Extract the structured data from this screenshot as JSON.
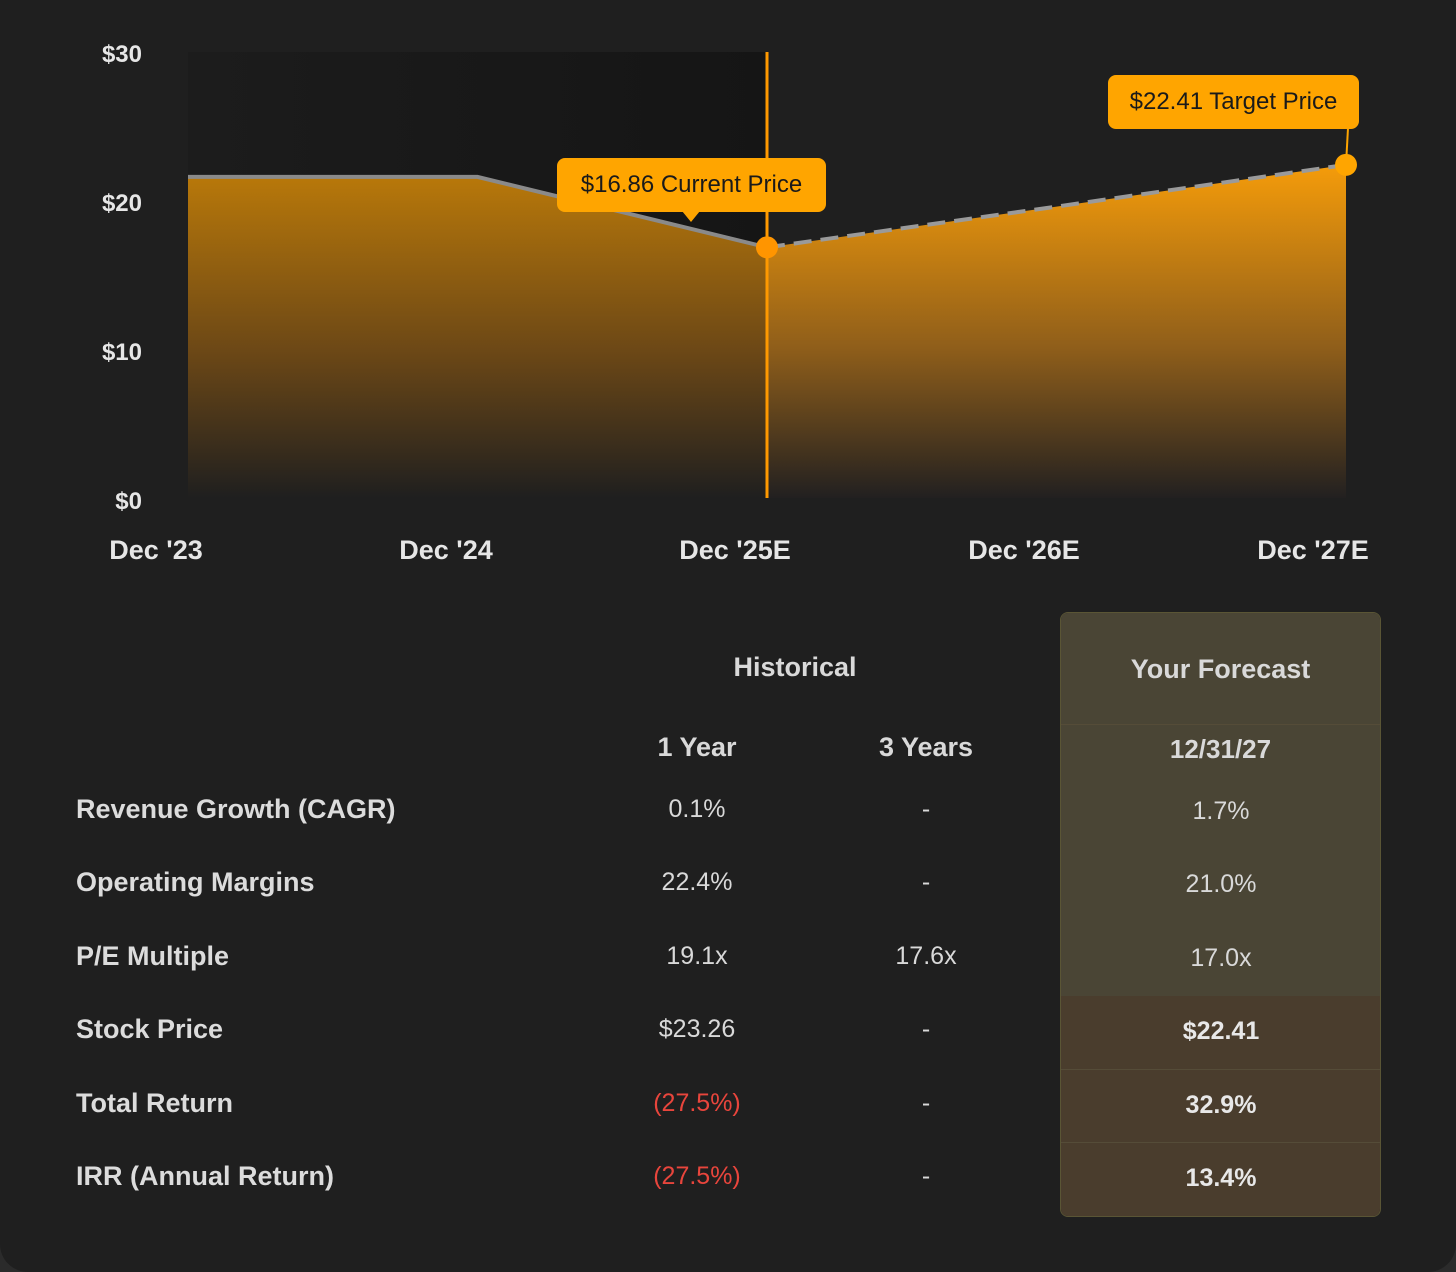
{
  "chart_data": {
    "type": "area",
    "x_tick_labels": [
      "Dec '23",
      "Dec '24",
      "Dec '25E",
      "Dec '26E",
      "Dec '27E"
    ],
    "y_tick_labels": [
      "$30",
      "$20",
      "$10",
      "$0"
    ],
    "ylim": [
      0,
      30
    ],
    "historical_points": [
      {
        "x": "Dec '23",
        "y": 21.6
      },
      {
        "x": "Dec '24",
        "y": 21.6
      },
      {
        "x": "Dec '25E",
        "y": 16.86
      }
    ],
    "forecast_points": [
      {
        "x": "Dec '25E",
        "y": 16.86
      },
      {
        "x": "Dec '26E",
        "y": 19.6
      },
      {
        "x": "Dec '27E",
        "y": 22.41
      }
    ],
    "current_price_label": "$16.86 Current Price",
    "target_price_label": "$22.41 Target Price",
    "current_price": 16.86,
    "target_price": 22.41,
    "colors": {
      "accent": "#ffa500",
      "line": "#8a8a8a",
      "background": "#1f1f1f"
    }
  },
  "table": {
    "historical_header": "Historical",
    "forecast_header": "Your Forecast",
    "col_1year": "1 Year",
    "col_3years": "3 Years",
    "col_forecast_date": "12/31/27",
    "rows": [
      {
        "label": "Revenue Growth (CAGR)",
        "one_year": "0.1%",
        "three_years": "-",
        "forecast": "1.7%"
      },
      {
        "label": "Operating Margins",
        "one_year": "22.4%",
        "three_years": "-",
        "forecast": "21.0%"
      },
      {
        "label": "P/E Multiple",
        "one_year": "19.1x",
        "three_years": "17.6x",
        "forecast": "17.0x"
      },
      {
        "label": "Stock Price",
        "one_year": "$23.26",
        "three_years": "-",
        "forecast": "$22.41"
      },
      {
        "label": "Total Return",
        "one_year": "(27.5%)",
        "three_years": "-",
        "forecast": "32.9%"
      },
      {
        "label": "IRR (Annual Return)",
        "one_year": "(27.5%)",
        "three_years": "-",
        "forecast": "13.4%"
      }
    ]
  }
}
